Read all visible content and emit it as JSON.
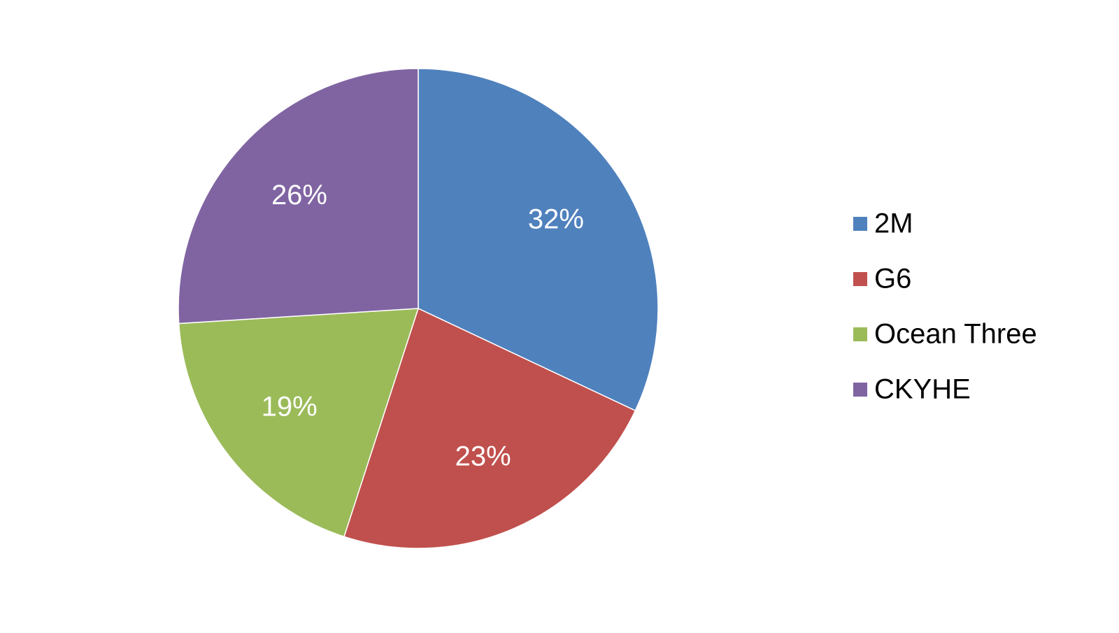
{
  "chart_data": {
    "type": "pie",
    "categories": [
      "2M",
      "G6",
      "Ocean Three",
      "CKYHE"
    ],
    "values": [
      32,
      23,
      19,
      26
    ],
    "value_labels": [
      "32%",
      "23%",
      "19%",
      "26%"
    ],
    "colors": [
      "#4f81bd",
      "#c0504d",
      "#9bbb59",
      "#8064a2"
    ],
    "legend": "right"
  }
}
